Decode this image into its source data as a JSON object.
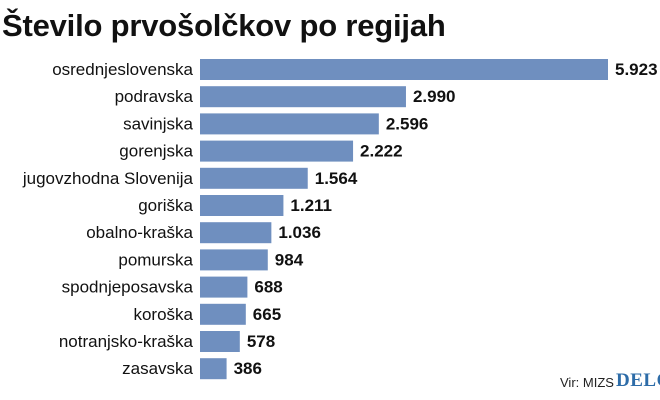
{
  "chart_data": {
    "type": "bar",
    "orientation": "horizontal",
    "title": "Število prvošolčkov po regijah",
    "categories": [
      "osrednjeslovenska",
      "podravska",
      "savinjska",
      "gorenjska",
      "jugovzhodna Slovenija",
      "goriška",
      "obalno-kraška",
      "pomurska",
      "spodnjeposavska",
      "koroška",
      "notranjsko-kraška",
      "zasavska"
    ],
    "values": [
      5923,
      2990,
      2596,
      2222,
      1564,
      1211,
      1036,
      984,
      688,
      665,
      578,
      386
    ],
    "value_labels": [
      "5.923",
      "2.990",
      "2.596",
      "2.222",
      "1.564",
      "1.211",
      "1.036",
      "984",
      "688",
      "665",
      "578",
      "386"
    ],
    "xlim": [
      0,
      5923
    ],
    "grid": false,
    "legend": "none",
    "bar_color": "#6f8fbf"
  },
  "footer": {
    "source": "Vir: MIZS",
    "logo": "DELO"
  }
}
